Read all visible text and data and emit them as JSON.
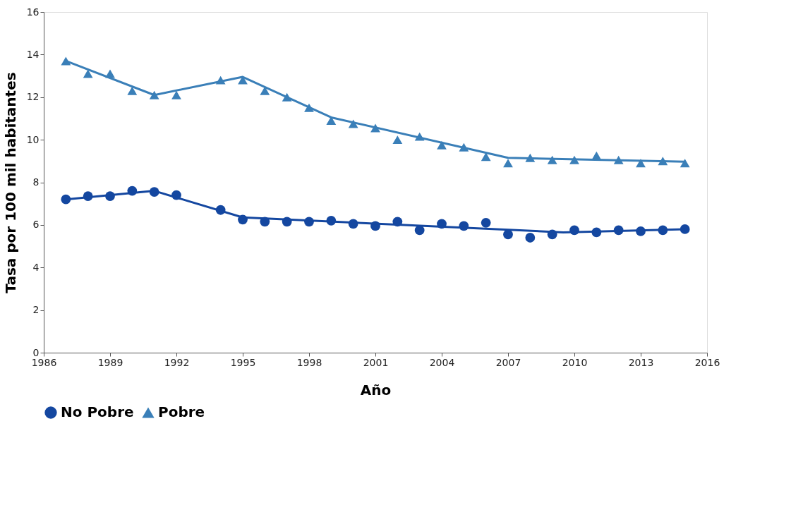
{
  "chart_data": {
    "type": "scatter",
    "xlabel": "Año",
    "ylabel": "Tasa por 100 mil habitantes",
    "xlim": [
      1986,
      2016
    ],
    "xticks": [
      1986,
      1989,
      1992,
      1995,
      1998,
      2001,
      2004,
      2007,
      2010,
      2013,
      2016
    ],
    "ylim": [
      0,
      16
    ],
    "yticks": [
      0,
      2,
      4,
      6,
      8,
      10,
      12,
      14,
      16
    ],
    "grid": false,
    "legend": "bottom",
    "series": [
      {
        "name": "No Pobre",
        "marker": "circle",
        "color": "#1447a0",
        "x": [
          1987,
          1988,
          1989,
          1990,
          1991,
          1992,
          1994,
          1995,
          1996,
          1997,
          1998,
          1999,
          2000,
          2001,
          2002,
          2003,
          2004,
          2005,
          2006,
          2007,
          2008,
          2009,
          2010,
          2011,
          2012,
          2013,
          2014,
          2015
        ],
        "values": [
          7.2,
          7.35,
          7.35,
          7.6,
          7.55,
          7.4,
          6.7,
          6.25,
          6.15,
          6.15,
          6.15,
          6.2,
          6.05,
          5.95,
          6.15,
          5.75,
          6.05,
          5.95,
          6.1,
          5.55,
          5.4,
          5.55,
          5.75,
          5.65,
          5.75,
          5.7,
          5.75,
          5.8
        ]
      },
      {
        "name": "Pobre",
        "marker": "triangle",
        "color": "#3a7fb8",
        "x": [
          1987,
          1988,
          1989,
          1990,
          1991,
          1992,
          1994,
          1995,
          1996,
          1997,
          1998,
          1999,
          2000,
          2001,
          2002,
          2003,
          2004,
          2005,
          2006,
          2007,
          2008,
          2009,
          2010,
          2011,
          2012,
          2013,
          2014,
          2015
        ],
        "values": [
          13.7,
          13.1,
          13.1,
          12.3,
          12.1,
          12.1,
          12.8,
          12.8,
          12.3,
          12.0,
          11.5,
          10.9,
          10.75,
          10.55,
          10.0,
          10.15,
          9.75,
          9.65,
          9.2,
          8.9,
          9.15,
          9.05,
          9.05,
          9.25,
          9.05,
          8.9,
          9.0,
          8.9
        ]
      },
      {
        "type": "line",
        "marker": "none",
        "color": "#1447a0",
        "x": [
          1987,
          1991,
          1995,
          2009.5,
          2015
        ],
        "values": [
          7.2,
          7.6,
          6.35,
          5.65,
          5.8
        ]
      },
      {
        "type": "line",
        "marker": "none",
        "color": "#3a7fb8",
        "x": [
          1987,
          1991,
          1995,
          1999,
          2007,
          2015
        ],
        "values": [
          13.7,
          12.1,
          12.95,
          11.05,
          9.15,
          8.97
        ]
      }
    ]
  }
}
